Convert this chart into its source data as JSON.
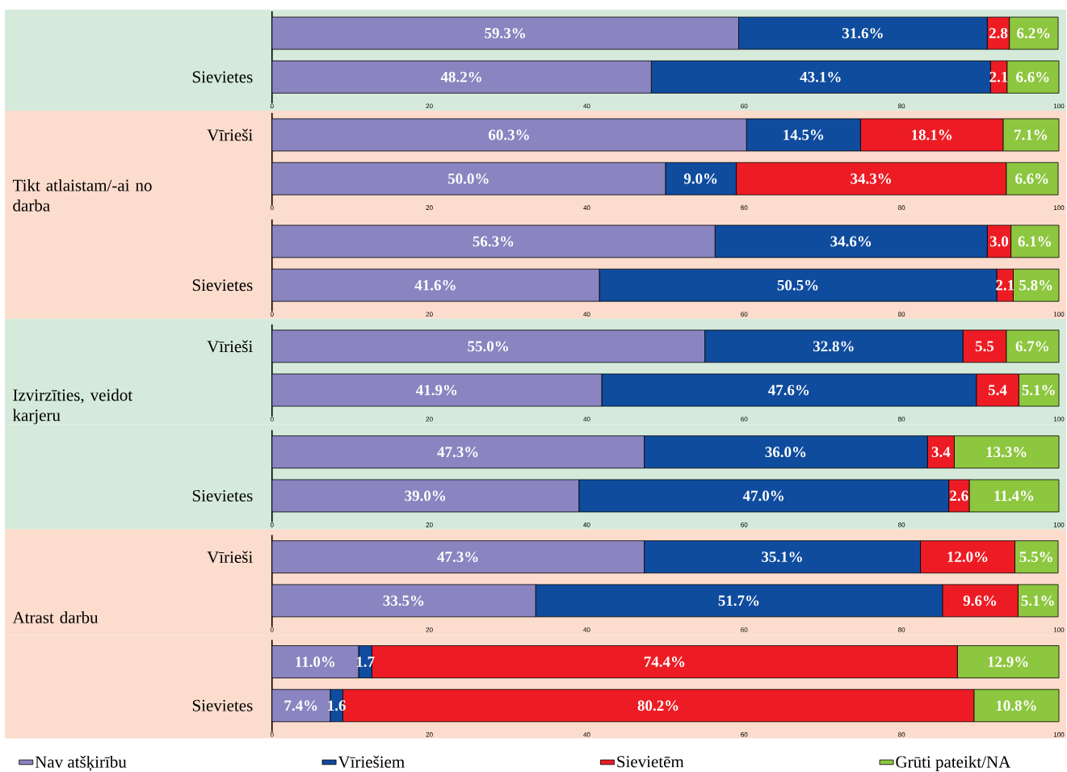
{
  "chart_data": [
    {
      "type": "bar",
      "orientation": "horizontal",
      "stacked": true,
      "categories": [
        null,
        "Sievietes"
      ],
      "xlim": [
        0,
        100
      ],
      "xticks": [
        0,
        20,
        40,
        60,
        80,
        100
      ],
      "series": [
        {
          "color": "#8a84c0",
          "values": [
            59.3,
            48.2
          ],
          "value_labels": [
            "59.3%",
            "48.2%"
          ]
        },
        {
          "color": "#0f4c9e",
          "values": [
            31.6,
            43.1
          ],
          "value_labels": [
            "31.6%",
            "43.1%"
          ]
        },
        {
          "color": "#ed1c24",
          "values": [
            2.8,
            2.1
          ],
          "value_labels": [
            "2.8",
            "2.1"
          ]
        },
        {
          "color": "#8dc63f",
          "values": [
            6.2,
            6.6
          ],
          "value_labels": [
            "6.2%",
            "6.6%"
          ]
        }
      ]
    },
    {
      "type": "bar",
      "orientation": "horizontal",
      "stacked": true,
      "ylabel": "Tikt atlaistam/-ai no darba",
      "categories": [
        "Vīrieši",
        null
      ],
      "xlim": [
        0,
        100
      ],
      "xticks": [
        0,
        20,
        40,
        60,
        80,
        100
      ],
      "series": [
        {
          "color": "#8a84c0",
          "values": [
            60.3,
            50.0
          ],
          "value_labels": [
            "60.3%",
            "50.0%"
          ]
        },
        {
          "color": "#0f4c9e",
          "values": [
            14.5,
            9.0
          ],
          "value_labels": [
            "14.5%",
            "9.0%"
          ]
        },
        {
          "color": "#ed1c24",
          "values": [
            18.1,
            34.3
          ],
          "value_labels": [
            "18.1%",
            "34.3%"
          ]
        },
        {
          "color": "#8dc63f",
          "values": [
            7.1,
            6.6
          ],
          "value_labels": [
            "7.1%",
            "6.6%"
          ]
        }
      ]
    },
    {
      "type": "bar",
      "orientation": "horizontal",
      "stacked": true,
      "categories": [
        null,
        "Sievietes"
      ],
      "xlim": [
        0,
        100
      ],
      "xticks": [
        0,
        20,
        40,
        60,
        80,
        100
      ],
      "series": [
        {
          "color": "#8a84c0",
          "values": [
            56.3,
            41.6
          ],
          "value_labels": [
            "56.3%",
            "41.6%"
          ]
        },
        {
          "color": "#0f4c9e",
          "values": [
            34.6,
            50.5
          ],
          "value_labels": [
            "34.6%",
            "50.5%"
          ]
        },
        {
          "color": "#ed1c24",
          "values": [
            3.0,
            2.1
          ],
          "value_labels": [
            "3.0",
            "2.1"
          ]
        },
        {
          "color": "#8dc63f",
          "values": [
            6.1,
            5.8
          ],
          "value_labels": [
            "6.1%",
            "5.8%"
          ]
        }
      ]
    },
    {
      "type": "bar",
      "orientation": "horizontal",
      "stacked": true,
      "ylabel": "Izvirzīties, veidot karjeru",
      "categories": [
        "Vīrieši",
        null
      ],
      "xlim": [
        0,
        100
      ],
      "xticks": [
        0,
        20,
        40,
        60,
        80,
        100
      ],
      "series": [
        {
          "color": "#8a84c0",
          "values": [
            55.0,
            41.9
          ],
          "value_labels": [
            "55.0%",
            "41.9%"
          ]
        },
        {
          "color": "#0f4c9e",
          "values": [
            32.8,
            47.6
          ],
          "value_labels": [
            "32.8%",
            "47.6%"
          ]
        },
        {
          "color": "#ed1c24",
          "values": [
            5.5,
            5.4
          ],
          "value_labels": [
            "5.5",
            "5.4"
          ]
        },
        {
          "color": "#8dc63f",
          "values": [
            6.7,
            5.1
          ],
          "value_labels": [
            "6.7%",
            "5.1%"
          ]
        }
      ]
    },
    {
      "type": "bar",
      "orientation": "horizontal",
      "stacked": true,
      "categories": [
        null,
        "Sievietes"
      ],
      "xlim": [
        0,
        100
      ],
      "xticks": [
        0,
        20,
        40,
        60,
        80,
        100
      ],
      "series": [
        {
          "color": "#8a84c0",
          "values": [
            47.3,
            39.0
          ],
          "value_labels": [
            "47.3%",
            "39.0%"
          ]
        },
        {
          "color": "#0f4c9e",
          "values": [
            36.0,
            47.0
          ],
          "value_labels": [
            "36.0%",
            "47.0%"
          ]
        },
        {
          "color": "#ed1c24",
          "values": [
            3.4,
            2.6
          ],
          "value_labels": [
            "3.4",
            "2.6"
          ]
        },
        {
          "color": "#8dc63f",
          "values": [
            13.3,
            11.4
          ],
          "value_labels": [
            "13.3%",
            "11.4%"
          ]
        }
      ]
    },
    {
      "type": "bar",
      "orientation": "horizontal",
      "stacked": true,
      "ylabel": "Atrast darbu",
      "categories": [
        "Vīrieši",
        null
      ],
      "xlim": [
        0,
        100
      ],
      "xticks": [
        0,
        20,
        40,
        60,
        80,
        100
      ],
      "series": [
        {
          "color": "#8a84c0",
          "values": [
            47.3,
            33.5
          ],
          "value_labels": [
            "47.3%",
            "33.5%"
          ]
        },
        {
          "color": "#0f4c9e",
          "values": [
            35.1,
            51.7
          ],
          "value_labels": [
            "35.1%",
            "51.7%"
          ]
        },
        {
          "color": "#ed1c24",
          "values": [
            12.0,
            9.6
          ],
          "value_labels": [
            "12.0%",
            "9.6%"
          ]
        },
        {
          "color": "#8dc63f",
          "values": [
            5.5,
            5.1
          ],
          "value_labels": [
            "5.5%",
            "5.1%"
          ]
        }
      ]
    },
    {
      "type": "bar",
      "orientation": "horizontal",
      "stacked": true,
      "categories": [
        null,
        "Sievietes"
      ],
      "xlim": [
        0,
        100
      ],
      "xticks": [
        0,
        20,
        40,
        60,
        80,
        100
      ],
      "legend": "bottom",
      "series": [
        {
          "name": "Nav atšķirību",
          "color": "#8a84c0",
          "values": [
            11.0,
            7.4
          ],
          "value_labels": [
            "11.0%",
            "7.4%"
          ]
        },
        {
          "name": "Vīriešiem",
          "color": "#0f4c9e",
          "values": [
            1.7,
            1.6
          ],
          "value_labels": [
            "1.7",
            "1.6"
          ]
        },
        {
          "name": "Sievietēm",
          "color": "#ed1c24",
          "values": [
            74.4,
            80.2
          ],
          "value_labels": [
            "74.4%",
            "80.2%"
          ]
        },
        {
          "name": "Grūti pateikt/NA",
          "color": "#8dc63f",
          "values": [
            12.9,
            10.8
          ],
          "value_labels": [
            "12.9%",
            "10.8%"
          ]
        }
      ]
    }
  ]
}
